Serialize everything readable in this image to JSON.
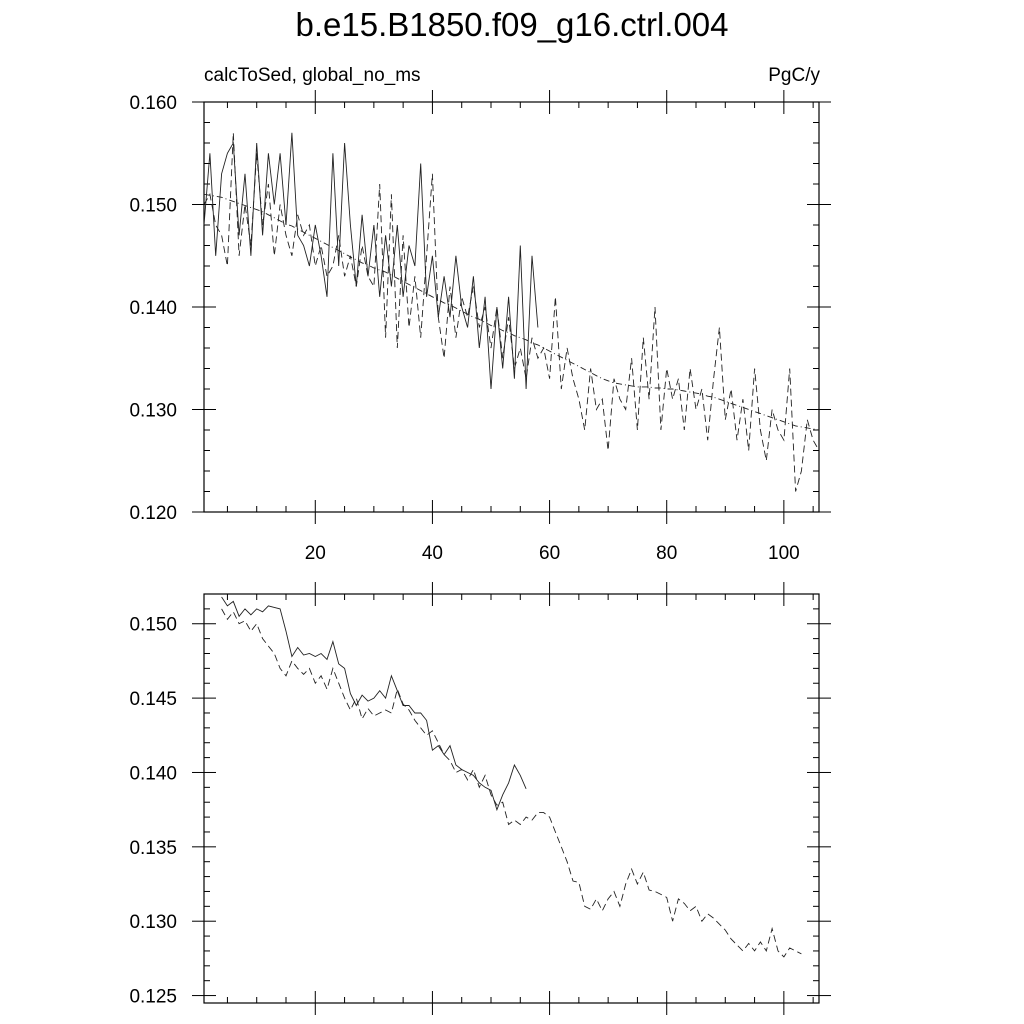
{
  "title": "b.e15.B1850.f09_g16.ctrl.004",
  "top_left_label": "calcToSed, global_no_ms",
  "top_right_label": "PgC/y",
  "chart_data": [
    {
      "type": "line",
      "panel": "top",
      "xlim": [
        1,
        106
      ],
      "ylim": [
        0.12,
        0.16
      ],
      "x_ticks": [
        20,
        40,
        60,
        80,
        100
      ],
      "y_ticks": [
        "0.120",
        "0.130",
        "0.140",
        "0.150",
        "0.160"
      ],
      "series": [
        {
          "style": "solid",
          "x_start": 1,
          "values": [
            0.148,
            0.155,
            0.145,
            0.153,
            0.155,
            0.156,
            0.147,
            0.153,
            0.145,
            0.156,
            0.147,
            0.155,
            0.15,
            0.155,
            0.148,
            0.157,
            0.147,
            0.146,
            0.144,
            0.148,
            0.145,
            0.141,
            0.155,
            0.144,
            0.156,
            0.148,
            0.142,
            0.149,
            0.143,
            0.148,
            0.141,
            0.147,
            0.142,
            0.148,
            0.141,
            0.146,
            0.144,
            0.154,
            0.141,
            0.145,
            0.139,
            0.143,
            0.139,
            0.145,
            0.14,
            0.138,
            0.143,
            0.136,
            0.141,
            0.132,
            0.14,
            0.134,
            0.141,
            0.133,
            0.146,
            0.132,
            0.145,
            0.138
          ]
        },
        {
          "style": "dashed",
          "x_start": 1,
          "values": [
            0.15,
            0.151,
            0.148,
            0.147,
            0.144,
            0.157,
            0.145,
            0.15,
            0.146,
            0.155,
            0.148,
            0.152,
            0.145,
            0.15,
            0.147,
            0.145,
            0.149,
            0.147,
            0.148,
            0.144,
            0.146,
            0.143,
            0.144,
            0.147,
            0.143,
            0.145,
            0.142,
            0.146,
            0.143,
            0.142,
            0.152,
            0.137,
            0.151,
            0.136,
            0.147,
            0.138,
            0.143,
            0.137,
            0.145,
            0.153,
            0.139,
            0.135,
            0.142,
            0.137,
            0.141,
            0.139,
            0.142,
            0.138,
            0.14,
            0.136,
            0.14,
            0.135,
            0.139,
            0.134,
            0.136,
            0.133,
            0.137,
            0.135,
            0.136,
            0.133,
            0.141,
            0.132,
            0.136,
            0.133,
            0.131,
            0.128,
            0.134,
            0.13,
            0.131,
            0.126,
            0.133,
            0.131,
            0.13,
            0.135,
            0.128,
            0.137,
            0.131,
            0.14,
            0.128,
            0.134,
            0.131,
            0.133,
            0.128,
            0.134,
            0.13,
            0.132,
            0.127,
            0.133,
            0.138,
            0.129,
            0.132,
            0.127,
            0.131,
            0.126,
            0.134,
            0.128,
            0.125,
            0.13,
            0.128,
            0.127,
            0.134,
            0.122,
            0.124,
            0.129,
            0.127,
            0.126
          ]
        },
        {
          "style": "dash-dot",
          "x_start": 1,
          "values": [
            0.151,
            0.1509,
            0.1508,
            0.1507,
            0.1505,
            0.1503,
            0.1501,
            0.1499,
            0.1497,
            0.1495,
            0.1493,
            0.149,
            0.1487,
            0.1484,
            0.1481,
            0.1479,
            0.1476,
            0.1473,
            0.147,
            0.1467,
            0.1464,
            0.1461,
            0.1458,
            0.1455,
            0.1452,
            0.1449,
            0.1446,
            0.1443,
            0.1441,
            0.1438,
            0.1436,
            0.1434,
            0.1431,
            0.1428,
            0.1425,
            0.1422,
            0.1419,
            0.1416,
            0.1413,
            0.141,
            0.1407,
            0.1404,
            0.1402,
            0.1399,
            0.1396,
            0.1393,
            0.139,
            0.1388,
            0.1385,
            0.1382,
            0.138,
            0.1377,
            0.1375,
            0.1372,
            0.137,
            0.1368,
            0.1365,
            0.1363,
            0.136,
            0.1357,
            0.1354,
            0.1351,
            0.1348,
            0.1345,
            0.1342,
            0.1339,
            0.1336,
            0.1333,
            0.133,
            0.1328,
            0.1326,
            0.1325,
            0.1324,
            0.1323,
            0.1322,
            0.1322,
            0.1322,
            0.1321,
            0.1321,
            0.132,
            0.132,
            0.1319,
            0.1318,
            0.1317,
            0.1316,
            0.1315,
            0.1313,
            0.1312,
            0.131,
            0.1308,
            0.1306,
            0.1304,
            0.1302,
            0.13,
            0.1298,
            0.1296,
            0.1294,
            0.1292,
            0.129,
            0.1288,
            0.1286,
            0.1284,
            0.1283,
            0.1282,
            0.1281,
            0.128
          ]
        }
      ]
    },
    {
      "type": "line",
      "panel": "bottom",
      "xlim": [
        1,
        106
      ],
      "ylim": [
        0.1245,
        0.152
      ],
      "y_ticks": [
        "0.125",
        "0.130",
        "0.135",
        "0.140",
        "0.145",
        "0.150"
      ],
      "series": [
        {
          "style": "solid",
          "x_start": 4,
          "values": [
            0.1518,
            0.1512,
            0.1515,
            0.1505,
            0.151,
            0.1506,
            0.151,
            0.1508,
            0.1512,
            0.1511,
            0.151,
            0.1495,
            0.1478,
            0.1484,
            0.1479,
            0.148,
            0.1478,
            0.148,
            0.1476,
            0.1488,
            0.1473,
            0.147,
            0.1453,
            0.1445,
            0.1452,
            0.1448,
            0.145,
            0.1455,
            0.145,
            0.1465,
            0.1455,
            0.1445,
            0.1445,
            0.144,
            0.144,
            0.1435,
            0.1415,
            0.1418,
            0.1412,
            0.1418,
            0.1405,
            0.1402,
            0.14,
            0.1398,
            0.1393,
            0.139,
            0.1388,
            0.1375,
            0.1385,
            0.1393,
            0.1405,
            0.1398,
            0.1389
          ]
        },
        {
          "style": "dashed",
          "x_start": 4,
          "values": [
            0.151,
            0.1503,
            0.1508,
            0.15,
            0.1502,
            0.1495,
            0.15,
            0.149,
            0.1485,
            0.148,
            0.147,
            0.1465,
            0.1475,
            0.147,
            0.1466,
            0.147,
            0.146,
            0.1465,
            0.1456,
            0.147,
            0.146,
            0.145,
            0.1442,
            0.145,
            0.1436,
            0.1443,
            0.1438,
            0.144,
            0.1442,
            0.144,
            0.1456,
            0.1446,
            0.1442,
            0.1435,
            0.143,
            0.1425,
            0.1428,
            0.142,
            0.1412,
            0.1408,
            0.14,
            0.1402,
            0.1395,
            0.1402,
            0.139,
            0.1398,
            0.1385,
            0.1378,
            0.138,
            0.1365,
            0.1368,
            0.1365,
            0.137,
            0.1368,
            0.1373,
            0.1373,
            0.137,
            0.136,
            0.135,
            0.134,
            0.1327,
            0.1326,
            0.131,
            0.1308,
            0.1315,
            0.1307,
            0.1315,
            0.132,
            0.131,
            0.1325,
            0.1335,
            0.1325,
            0.1333,
            0.1321,
            0.132,
            0.1318,
            0.1316,
            0.13,
            0.1315,
            0.1312,
            0.1307,
            0.131,
            0.13,
            0.1305,
            0.1302,
            0.1298,
            0.1294,
            0.1288,
            0.1284,
            0.128,
            0.1285,
            0.128,
            0.1286,
            0.128,
            0.1295,
            0.128,
            0.1276,
            0.1282,
            0.128,
            0.1278
          ]
        }
      ]
    }
  ]
}
